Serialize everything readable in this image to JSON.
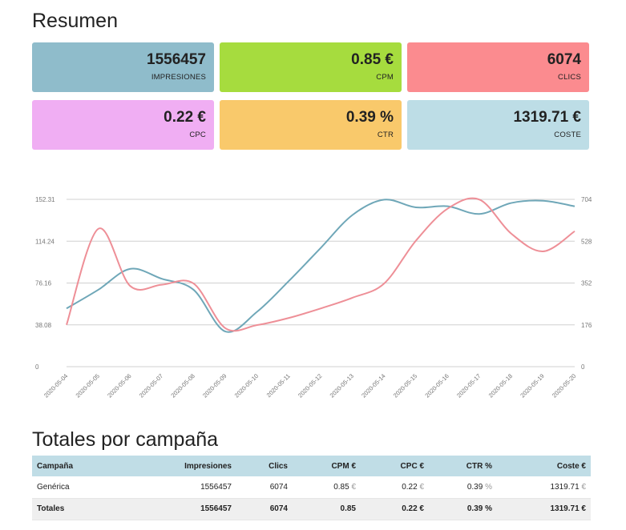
{
  "page": {
    "title": "Resumen",
    "campaigns_title": "Totales por campaña"
  },
  "summary": {
    "cards": [
      {
        "value": "1556457",
        "label": "IMPRESIONES",
        "color": "#8fbccb"
      },
      {
        "value": "0.85 €",
        "label": "CPM",
        "color": "#a6dc3e"
      },
      {
        "value": "6074",
        "label": "CLICS",
        "color": "#fb8b8f"
      },
      {
        "value": "0.22 €",
        "label": "CPC",
        "color": "#f0aef3"
      },
      {
        "value": "0.39 %",
        "label": "CTR",
        "color": "#f9c96b"
      },
      {
        "value": "1319.71 €",
        "label": "COSTE",
        "color": "#bddde6"
      }
    ]
  },
  "chart_data": {
    "type": "line",
    "x": [
      "2020-05-04",
      "2020-05-05",
      "2020-05-06",
      "2020-05-07",
      "2020-05-08",
      "2020-05-09",
      "2020-05-10",
      "2020-05-11",
      "2020-05-12",
      "2020-05-13",
      "2020-05-14",
      "2020-05-15",
      "2020-05-16",
      "2020-05-17",
      "2020-05-18",
      "2020-05-19",
      "2020-05-20"
    ],
    "y_left_ticks": [
      "0",
      "38.08",
      "76.16",
      "114.24",
      "152.31"
    ],
    "y_right_ticks": [
      "0",
      "176",
      "352",
      "528",
      "704"
    ],
    "y_left_range": [
      0,
      152.31
    ],
    "y_right_range": [
      0,
      704
    ],
    "grid": true,
    "series": [
      {
        "color": "#6fa7b8",
        "axis": "left",
        "values": [
          53,
          70,
          89,
          80,
          70,
          32,
          50,
          78,
          108,
          138,
          152,
          145,
          146,
          139,
          149,
          151,
          146
        ]
      },
      {
        "color": "#ee8f97",
        "axis": "right",
        "values": [
          176,
          580,
          340,
          345,
          350,
          162,
          175,
          205,
          245,
          290,
          350,
          530,
          665,
          703,
          560,
          485,
          570
        ]
      }
    ]
  },
  "table": {
    "headers": [
      "Campaña",
      "Impresiones",
      "Clics",
      "CPM €",
      "CPC €",
      "CTR %",
      "Coste €"
    ],
    "rows": [
      {
        "campaign": "Genérica",
        "impressions": "1556457",
        "clicks": "6074",
        "cpm": "0.85",
        "cpm_unit": "€",
        "cpc": "0.22",
        "cpc_unit": "€",
        "ctr": "0.39",
        "ctr_unit": "%",
        "cost": "1319.71",
        "cost_unit": "€"
      }
    ],
    "footer": {
      "campaign": "Totales",
      "impressions": "1556457",
      "clicks": "6074",
      "cpm": "0.85",
      "cpc": "0.22 €",
      "ctr": "0.39 %",
      "cost": "1319.71 €"
    }
  }
}
